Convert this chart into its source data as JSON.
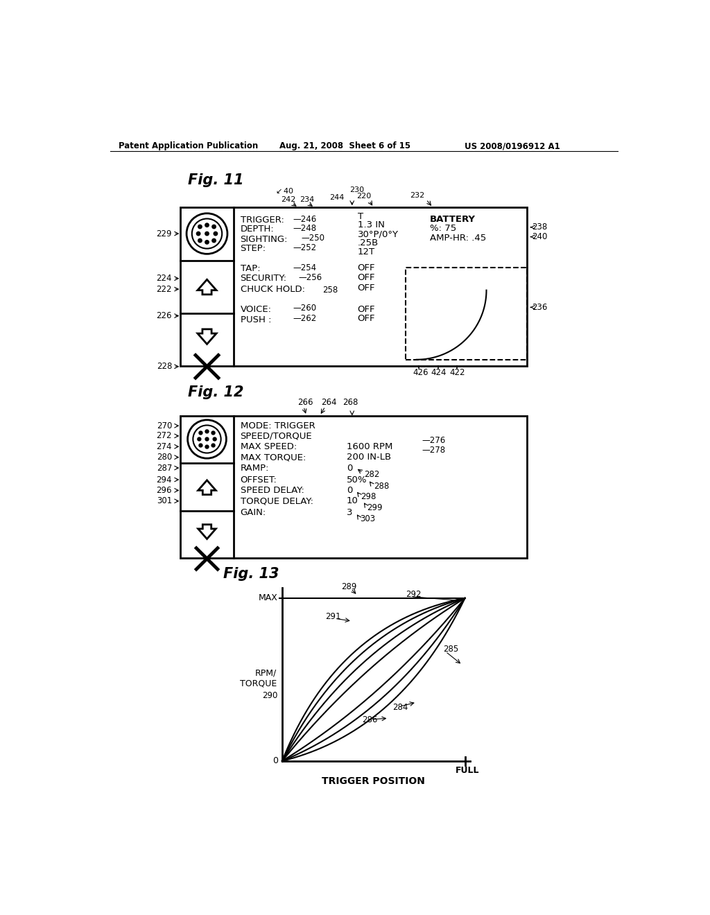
{
  "bg_color": "#ffffff",
  "header_left": "Patent Application Publication",
  "header_mid": "Aug. 21, 2008  Sheet 6 of 15",
  "header_right": "US 2008/0196912 A1"
}
